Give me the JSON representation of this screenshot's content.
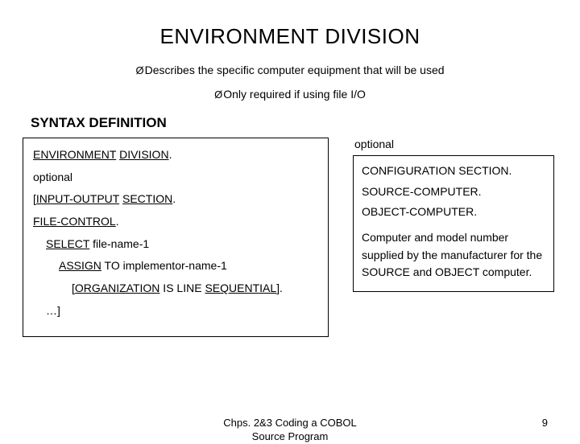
{
  "title": "ENVIRONMENT DIVISION",
  "bullets": {
    "b1": "Describes the specific computer equipment that will be used",
    "b2": "Only required if using file I/O"
  },
  "syntax_heading": "SYNTAX DEFINITION",
  "left": {
    "env": "ENVIRONMENT",
    "div": "DIVISION",
    "period": ".",
    "optional": "optional",
    "lbr": "[",
    "io": "INPUT-OUTPUT",
    "section": "SECTION",
    "file_control": "FILE-CONTROL",
    "select": "SELECT",
    "filename": " file-name-1",
    "assign": "ASSIGN",
    "assign_rest": " TO implementor-name-1",
    "org_lbr": "[",
    "org": "ORGANIZATION",
    "org_mid": " IS LINE ",
    "seq": "SEQUENTIAL",
    "org_end": "].",
    "tail": "…]"
  },
  "right": {
    "optional": "optional",
    "config": "CONFIGURATION SECTION.",
    "source": "SOURCE-COMPUTER.",
    "object": "OBJECT-COMPUTER.",
    "note": "Computer and model number supplied by the manufacturer for the SOURCE and OBJECT computer."
  },
  "footer": {
    "center1": "Chps. 2&3 Coding a COBOL",
    "center2": "Source Program",
    "page": "9"
  },
  "glyph": {
    "chevron": "Ø"
  }
}
